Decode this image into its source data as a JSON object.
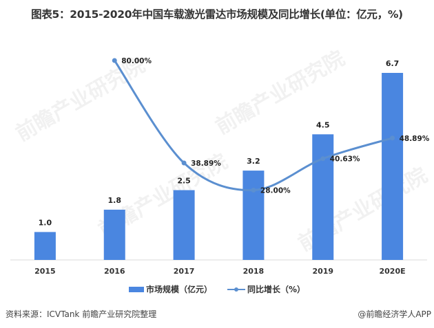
{
  "title": "图表5：2015-2020年中国车载激光雷达市场规模及同比增长(单位：亿元，%)",
  "source": "资料来源：ICVTank 前瞻产业研究院整理",
  "credit": "@前瞻经济学人APP",
  "watermark": "前瞻产业研究院",
  "colors": {
    "bar": "#4a86e0",
    "line": "#5b8fd0",
    "axis": "#d9d9d9"
  },
  "chart_data": {
    "type": "bar+line",
    "title": "图表5：2015-2020年中国车载激光雷达市场规模及同比增长(单位：亿元，%)",
    "categories": [
      "2015",
      "2016",
      "2017",
      "2018",
      "2019",
      "2020E"
    ],
    "series": [
      {
        "name": "市场规模（亿元）",
        "type": "bar",
        "values": [
          1.0,
          1.8,
          2.5,
          3.2,
          4.5,
          6.7
        ],
        "labels": [
          "1.0",
          "1.8",
          "2.5",
          "3.2",
          "4.5",
          "6.7"
        ]
      },
      {
        "name": "同比增长（%）",
        "type": "line",
        "smooth": true,
        "values": [
          null,
          80.0,
          38.89,
          28.0,
          40.63,
          48.89
        ],
        "labels": [
          "",
          "80.00%",
          "38.89%",
          "28.00%",
          "40.63%",
          "48.89%"
        ]
      }
    ],
    "bar_ylim": [
      0,
      6.7
    ],
    "line_ylim": [
      0,
      80
    ],
    "grid": false,
    "legend": "bottom-center"
  }
}
